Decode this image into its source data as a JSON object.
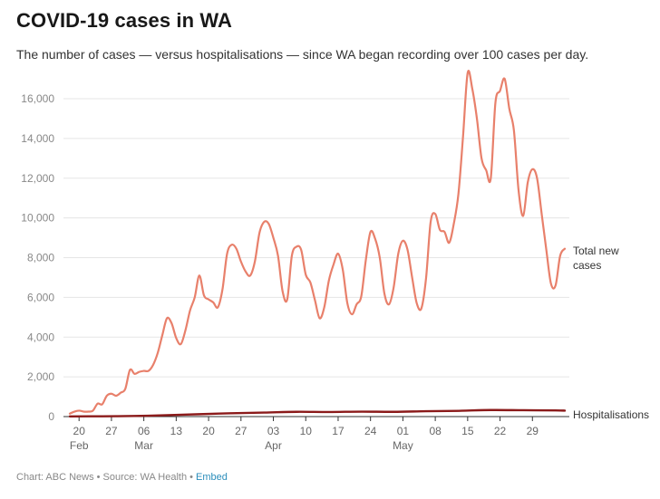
{
  "header": {
    "title": "COVID-19 cases in WA",
    "subtitle": "The number of cases — versus hospitalisations — since WA began recording over 100 cases per day."
  },
  "footer": {
    "credit": "Chart: ABC News • Source: WA Health •",
    "embed_label": "Embed"
  },
  "colors": {
    "total_cases": "#e8806b",
    "hospitalisations": "#8b1a1a",
    "gridline": "#e5e5e5",
    "axis": "#333333"
  },
  "chart_data": {
    "type": "line",
    "title": "COVID-19 cases in WA",
    "subtitle": "The number of cases — versus hospitalisations — since WA began recording over 100 cases per day.",
    "xlabel": "",
    "ylabel": "",
    "ylim": [
      0,
      16000
    ],
    "yticks": [
      0,
      2000,
      4000,
      6000,
      8000,
      10000,
      12000,
      14000,
      16000
    ],
    "ytick_labels": [
      "0",
      "2,000",
      "4,000",
      "6,000",
      "8,000",
      "10,000",
      "12,000",
      "14,000",
      "16,000"
    ],
    "xlim": [
      "2022-02-17",
      "2022-06-01"
    ],
    "xticks": [
      {
        "date": "2022-02-20",
        "day": "20",
        "month": "Feb"
      },
      {
        "date": "2022-02-27",
        "day": "27",
        "month": ""
      },
      {
        "date": "2022-03-06",
        "day": "06",
        "month": "Mar"
      },
      {
        "date": "2022-03-13",
        "day": "13",
        "month": ""
      },
      {
        "date": "2022-03-20",
        "day": "20",
        "month": ""
      },
      {
        "date": "2022-03-27",
        "day": "27",
        "month": ""
      },
      {
        "date": "2022-04-03",
        "day": "03",
        "month": "Apr"
      },
      {
        "date": "2022-04-10",
        "day": "10",
        "month": ""
      },
      {
        "date": "2022-04-17",
        "day": "17",
        "month": ""
      },
      {
        "date": "2022-04-24",
        "day": "24",
        "month": ""
      },
      {
        "date": "2022-05-01",
        "day": "01",
        "month": "May"
      },
      {
        "date": "2022-05-08",
        "day": "08",
        "month": ""
      },
      {
        "date": "2022-05-15",
        "day": "15",
        "month": ""
      },
      {
        "date": "2022-05-22",
        "day": "22",
        "month": ""
      },
      {
        "date": "2022-05-29",
        "day": "29",
        "month": ""
      }
    ],
    "grid": true,
    "legend": "direct labels at line ends (right)",
    "series": [
      {
        "name": "Total new cases",
        "color": "#e8806b",
        "points": [
          [
            "2022-02-18",
            150
          ],
          [
            "2022-02-19",
            250
          ],
          [
            "2022-02-20",
            300
          ],
          [
            "2022-02-21",
            250
          ],
          [
            "2022-02-22",
            250
          ],
          [
            "2022-02-23",
            300
          ],
          [
            "2022-02-24",
            650
          ],
          [
            "2022-02-25",
            620
          ],
          [
            "2022-02-26",
            1050
          ],
          [
            "2022-02-27",
            1150
          ],
          [
            "2022-02-28",
            1050
          ],
          [
            "2022-03-01",
            1200
          ],
          [
            "2022-03-02",
            1400
          ],
          [
            "2022-03-03",
            2350
          ],
          [
            "2022-03-04",
            2150
          ],
          [
            "2022-03-05",
            2250
          ],
          [
            "2022-03-06",
            2300
          ],
          [
            "2022-03-07",
            2300
          ],
          [
            "2022-03-08",
            2600
          ],
          [
            "2022-03-09",
            3200
          ],
          [
            "2022-03-10",
            4100
          ],
          [
            "2022-03-11",
            4950
          ],
          [
            "2022-03-12",
            4700
          ],
          [
            "2022-03-13",
            3950
          ],
          [
            "2022-03-14",
            3650
          ],
          [
            "2022-03-15",
            4350
          ],
          [
            "2022-03-16",
            5350
          ],
          [
            "2022-03-17",
            6000
          ],
          [
            "2022-03-18",
            7100
          ],
          [
            "2022-03-19",
            6100
          ],
          [
            "2022-03-20",
            5900
          ],
          [
            "2022-03-21",
            5750
          ],
          [
            "2022-03-22",
            5500
          ],
          [
            "2022-03-23",
            6400
          ],
          [
            "2022-03-24",
            8200
          ],
          [
            "2022-03-25",
            8650
          ],
          [
            "2022-03-26",
            8450
          ],
          [
            "2022-03-27",
            7800
          ],
          [
            "2022-03-28",
            7300
          ],
          [
            "2022-03-29",
            7100
          ],
          [
            "2022-03-30",
            7800
          ],
          [
            "2022-03-31",
            9250
          ],
          [
            "2022-04-01",
            9800
          ],
          [
            "2022-04-02",
            9700
          ],
          [
            "2022-04-03",
            9000
          ],
          [
            "2022-04-04",
            8100
          ],
          [
            "2022-04-05",
            6300
          ],
          [
            "2022-04-06",
            5900
          ],
          [
            "2022-04-07",
            8100
          ],
          [
            "2022-04-08",
            8550
          ],
          [
            "2022-04-09",
            8400
          ],
          [
            "2022-04-10",
            7150
          ],
          [
            "2022-04-11",
            6750
          ],
          [
            "2022-04-12",
            5850
          ],
          [
            "2022-04-13",
            4950
          ],
          [
            "2022-04-14",
            5500
          ],
          [
            "2022-04-15",
            6850
          ],
          [
            "2022-04-16",
            7650
          ],
          [
            "2022-04-17",
            8200
          ],
          [
            "2022-04-18",
            7400
          ],
          [
            "2022-04-19",
            5700
          ],
          [
            "2022-04-20",
            5150
          ],
          [
            "2022-04-21",
            5650
          ],
          [
            "2022-04-22",
            6050
          ],
          [
            "2022-04-23",
            7900
          ],
          [
            "2022-04-24",
            9300
          ],
          [
            "2022-04-25",
            8950
          ],
          [
            "2022-04-26",
            8000
          ],
          [
            "2022-04-27",
            6200
          ],
          [
            "2022-04-28",
            5650
          ],
          [
            "2022-04-29",
            6500
          ],
          [
            "2022-04-30",
            8200
          ],
          [
            "2022-05-01",
            8850
          ],
          [
            "2022-05-02",
            8400
          ],
          [
            "2022-05-03",
            7000
          ],
          [
            "2022-05-04",
            5700
          ],
          [
            "2022-05-05",
            5450
          ],
          [
            "2022-05-06",
            6950
          ],
          [
            "2022-05-07",
            9800
          ],
          [
            "2022-05-08",
            10200
          ],
          [
            "2022-05-09",
            9400
          ],
          [
            "2022-05-10",
            9300
          ],
          [
            "2022-05-11",
            8750
          ],
          [
            "2022-05-12",
            9700
          ],
          [
            "2022-05-13",
            11200
          ],
          [
            "2022-05-14",
            14100
          ],
          [
            "2022-05-15",
            17300
          ],
          [
            "2022-05-16",
            16500
          ],
          [
            "2022-05-17",
            15000
          ],
          [
            "2022-05-18",
            13000
          ],
          [
            "2022-05-19",
            12400
          ],
          [
            "2022-05-20",
            12000
          ],
          [
            "2022-05-21",
            15800
          ],
          [
            "2022-05-22",
            16400
          ],
          [
            "2022-05-23",
            17000
          ],
          [
            "2022-05-24",
            15500
          ],
          [
            "2022-05-25",
            14400
          ],
          [
            "2022-05-26",
            11400
          ],
          [
            "2022-05-27",
            10100
          ],
          [
            "2022-05-28",
            11800
          ],
          [
            "2022-05-29",
            12450
          ],
          [
            "2022-05-30",
            12000
          ],
          [
            "2022-05-31",
            10200
          ],
          [
            "2022-06-01",
            8400
          ],
          [
            "2022-06-02",
            6700
          ],
          [
            "2022-06-03",
            6600
          ],
          [
            "2022-06-04",
            8100
          ],
          [
            "2022-06-05",
            8450
          ]
        ]
      },
      {
        "name": "Hospitalisations",
        "color": "#8b1a1a",
        "points": [
          [
            "2022-02-18",
            10
          ],
          [
            "2022-02-25",
            15
          ],
          [
            "2022-03-04",
            30
          ],
          [
            "2022-03-11",
            70
          ],
          [
            "2022-03-18",
            120
          ],
          [
            "2022-03-25",
            170
          ],
          [
            "2022-04-01",
            200
          ],
          [
            "2022-04-08",
            240
          ],
          [
            "2022-04-15",
            230
          ],
          [
            "2022-04-22",
            250
          ],
          [
            "2022-04-29",
            240
          ],
          [
            "2022-05-06",
            270
          ],
          [
            "2022-05-13",
            290
          ],
          [
            "2022-05-20",
            330
          ],
          [
            "2022-05-27",
            320
          ],
          [
            "2022-06-03",
            310
          ],
          [
            "2022-06-05",
            300
          ]
        ]
      }
    ],
    "series_labels": [
      {
        "line1": "Total new",
        "line2": "cases"
      },
      {
        "line1": "Hospitalisations",
        "line2": ""
      }
    ]
  }
}
